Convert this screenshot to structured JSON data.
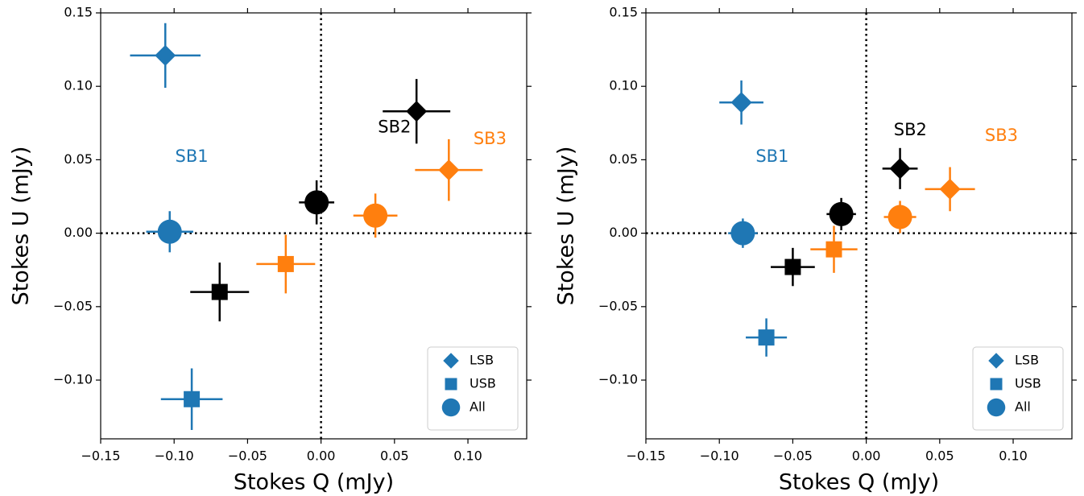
{
  "chart_data": [
    {
      "type": "scatter",
      "xlabel": "Stokes Q (mJy)",
      "ylabel": "Stokes U (mJy)",
      "xlim": [
        -0.15,
        0.14
      ],
      "ylim": [
        -0.14,
        0.15
      ],
      "xticks": [
        {
          "value": -0.15,
          "label": "−0.15"
        },
        {
          "value": -0.1,
          "label": "−0.10"
        },
        {
          "value": -0.05,
          "label": "−0.05"
        },
        {
          "value": 0,
          "label": "0.00"
        },
        {
          "value": 0.05,
          "label": "0.05"
        },
        {
          "value": 0.1,
          "label": "0.10"
        }
      ],
      "yticks": [
        {
          "value": -0.1,
          "label": "−0.10"
        },
        {
          "value": -0.05,
          "label": "−0.05"
        },
        {
          "value": 0,
          "label": "0.00"
        },
        {
          "value": 0.05,
          "label": "0.05"
        },
        {
          "value": 0.1,
          "label": "0.10"
        },
        {
          "value": 0.15,
          "label": "0.15"
        }
      ],
      "vlines": [
        0
      ],
      "hlines": [
        0
      ],
      "legend": "lower right",
      "annotations": [
        {
          "text": "SB1",
          "color": "#1f77b4"
        },
        {
          "text": "SB2",
          "color": "#000000"
        },
        {
          "text": "SB3",
          "color": "#ff7f0e"
        }
      ],
      "series": [
        {
          "name": "LSB",
          "marker": "diamond",
          "x": [
            -0.106,
            0.065,
            0.087
          ],
          "y": [
            0.121,
            0.083,
            0.043
          ],
          "xerr": [
            0.024,
            0.023,
            0.023
          ],
          "yerr": [
            0.022,
            0.022,
            0.021
          ]
        },
        {
          "name": "USB",
          "marker": "square",
          "x": [
            -0.088,
            -0.069,
            -0.024
          ],
          "y": [
            -0.113,
            -0.04,
            -0.021
          ],
          "xerr": [
            0.021,
            0.02,
            0.02
          ],
          "yerr": [
            0.021,
            0.02,
            0.02
          ]
        },
        {
          "name": "All",
          "marker": "circle",
          "x": [
            -0.103,
            -0.003,
            0.037
          ],
          "y": [
            0.001,
            0.021,
            0.012
          ],
          "xerr": [
            0.016,
            0.012,
            0.015
          ],
          "yerr": [
            0.014,
            0.015,
            0.015
          ]
        }
      ]
    },
    {
      "type": "scatter",
      "xlabel": "Stokes Q (mJy)",
      "ylabel": "Stokes U (mJy)",
      "xlim": [
        -0.15,
        0.14
      ],
      "ylim": [
        -0.14,
        0.15
      ],
      "xticks": [
        {
          "value": -0.15,
          "label": "−0.15"
        },
        {
          "value": -0.1,
          "label": "−0.10"
        },
        {
          "value": -0.05,
          "label": "−0.05"
        },
        {
          "value": 0,
          "label": "0.00"
        },
        {
          "value": 0.05,
          "label": "0.05"
        },
        {
          "value": 0.1,
          "label": "0.10"
        }
      ],
      "yticks": [
        {
          "value": -0.1,
          "label": "−0.10"
        },
        {
          "value": -0.05,
          "label": "−0.05"
        },
        {
          "value": 0,
          "label": "0.00"
        },
        {
          "value": 0.05,
          "label": "0.05"
        },
        {
          "value": 0.1,
          "label": "0.10"
        },
        {
          "value": 0.15,
          "label": "0.15"
        }
      ],
      "vlines": [
        0
      ],
      "hlines": [
        0
      ],
      "legend": "lower right",
      "annotations": [
        {
          "text": "SB1",
          "color": "#1f77b4"
        },
        {
          "text": "SB2",
          "color": "#000000"
        },
        {
          "text": "SB3",
          "color": "#ff7f0e"
        }
      ],
      "series": [
        {
          "name": "LSB",
          "marker": "diamond",
          "x": [
            -0.085,
            0.023,
            0.057
          ],
          "y": [
            0.089,
            0.044,
            0.03
          ],
          "xerr": [
            0.015,
            0.012,
            0.017
          ],
          "yerr": [
            0.015,
            0.014,
            0.015
          ]
        },
        {
          "name": "USB",
          "marker": "square",
          "x": [
            -0.068,
            -0.05,
            -0.022
          ],
          "y": [
            -0.071,
            -0.023,
            -0.011
          ],
          "xerr": [
            0.014,
            0.015,
            0.016
          ],
          "yerr": [
            0.013,
            0.013,
            0.016
          ]
        },
        {
          "name": "All",
          "marker": "circle",
          "x": [
            -0.084,
            -0.017,
            0.023
          ],
          "y": [
            0,
            0.013,
            0.011
          ],
          "xerr": [
            0.01,
            0.01,
            0.011
          ],
          "yerr": [
            0.01,
            0.011,
            0.011
          ]
        }
      ]
    }
  ]
}
